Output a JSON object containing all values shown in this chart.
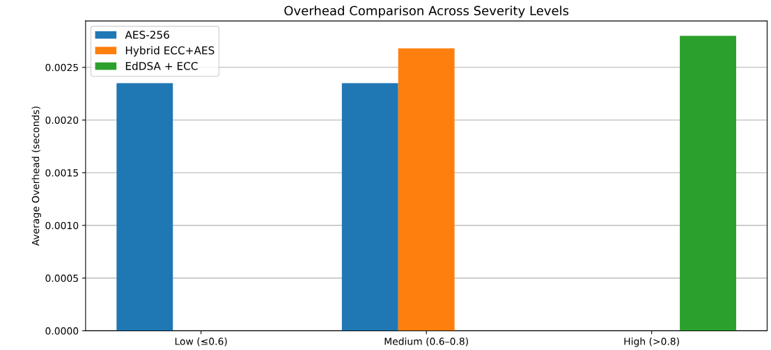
{
  "chart_data": {
    "type": "bar",
    "title": "Overhead Comparison Across Severity Levels",
    "ylabel": "Average Overhead (seconds)",
    "categories": [
      "Low (≤0.6)",
      "Medium (0.6–0.8)",
      "High (>0.8)"
    ],
    "series": [
      {
        "name": "AES-256",
        "color": "#1f77b4",
        "values": [
          0.00235,
          0.00235,
          null
        ]
      },
      {
        "name": "Hybrid ECC+AES",
        "color": "#ff7f0e",
        "values": [
          null,
          0.00268,
          null
        ]
      },
      {
        "name": "EdDSA + ECC",
        "color": "#2ca02c",
        "values": [
          null,
          null,
          0.0028
        ]
      }
    ],
    "ylim": [
      0,
      0.00294
    ],
    "yticks": [
      {
        "value": 0,
        "label": "0.0000"
      },
      {
        "value": 0.0005,
        "label": "0.0005"
      },
      {
        "value": 0.001,
        "label": "0.0010"
      },
      {
        "value": 0.0015,
        "label": "0.0015"
      },
      {
        "value": 0.002,
        "label": "0.0020"
      },
      {
        "value": 0.0025,
        "label": "0.0025"
      }
    ],
    "grid": "y",
    "legend": "top left"
  }
}
